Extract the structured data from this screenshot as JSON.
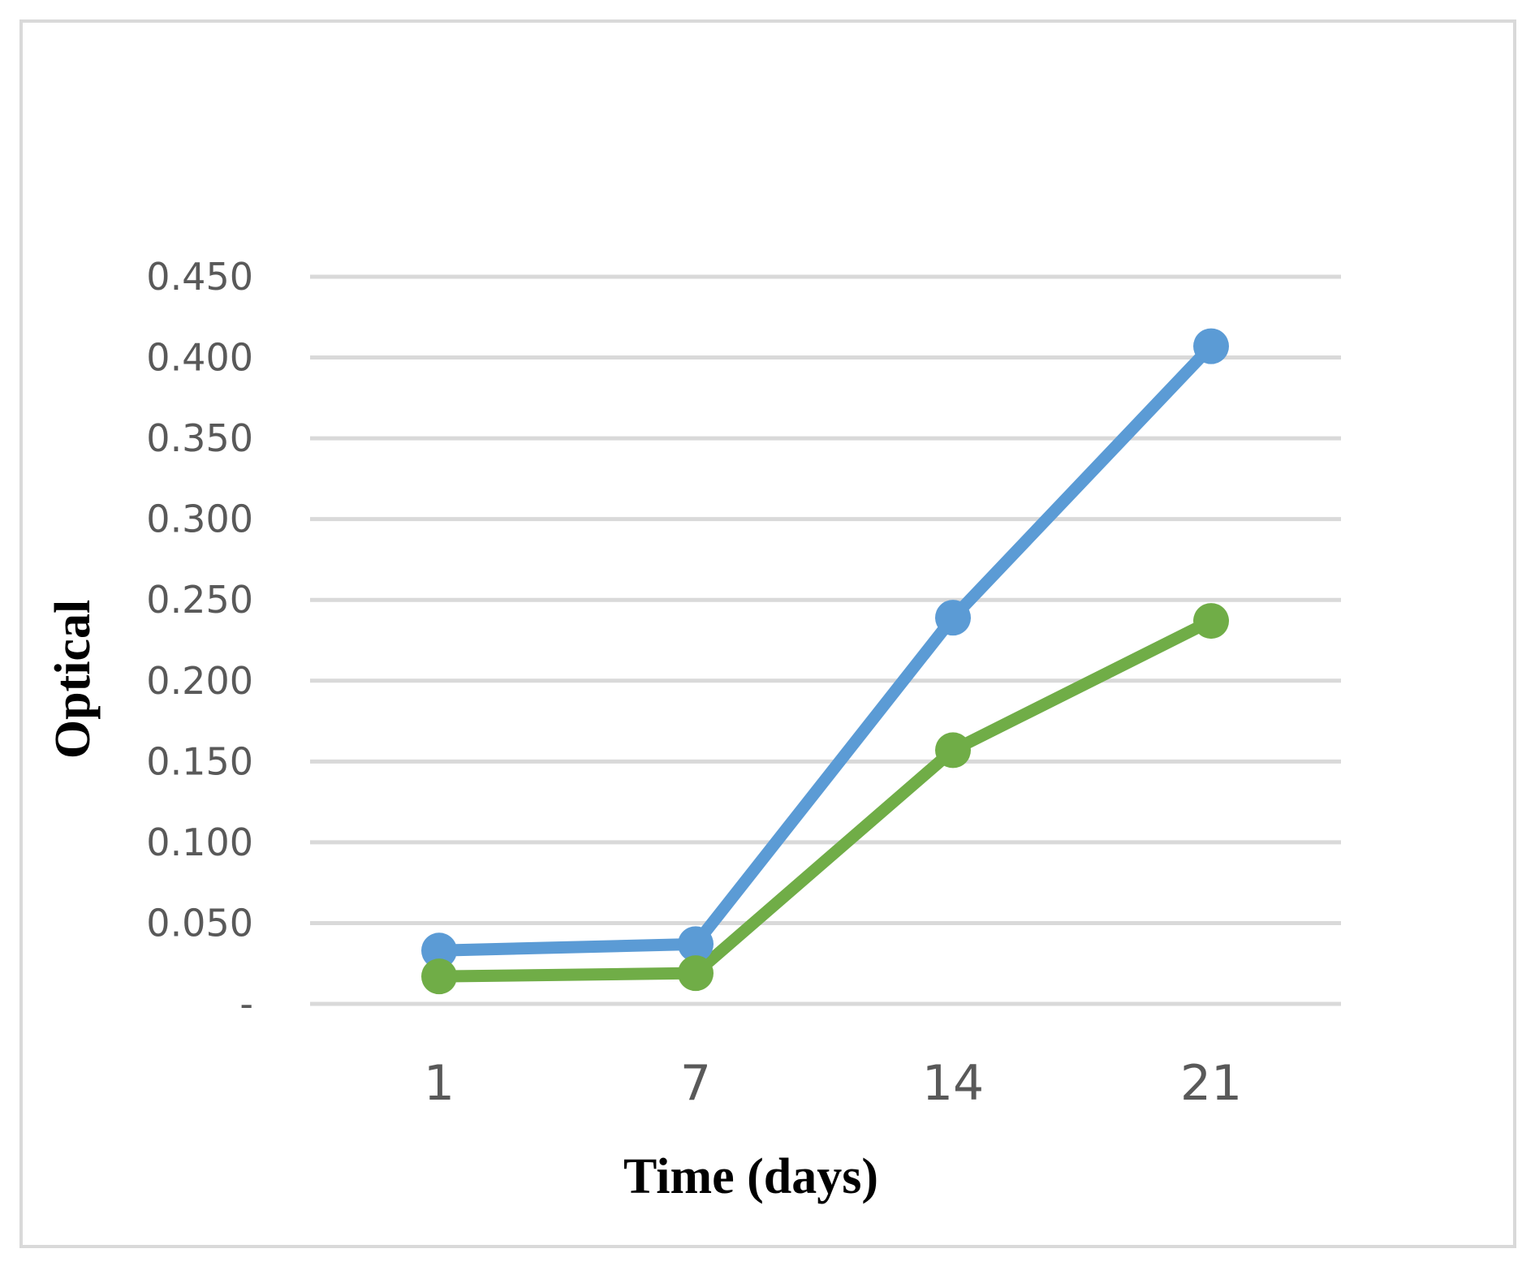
{
  "chart_data": {
    "type": "line",
    "title": "",
    "xlabel": "Time (days)",
    "ylabel": "Optical",
    "categories": [
      "1",
      "7",
      "14",
      "21"
    ],
    "ylim": [
      0,
      0.45
    ],
    "y_ticks": [
      0,
      0.05,
      0.1,
      0.15,
      0.2,
      0.25,
      0.3,
      0.35,
      0.4,
      0.45
    ],
    "y_tick_labels": [
      "-",
      "0.050",
      "0.100",
      "0.150",
      "0.200",
      "0.250",
      "0.300",
      "0.350",
      "0.400",
      "0.450"
    ],
    "grid": true,
    "legend": "none",
    "series": [
      {
        "values": [
          0.033,
          0.037,
          0.239,
          0.407
        ],
        "color": "#5B9BD5"
      },
      {
        "values": [
          0.017,
          0.019,
          0.157,
          0.237
        ],
        "color": "#70AD47"
      }
    ],
    "gridline_color": "#D9D9D9",
    "frame_color": "#D9D9D9"
  }
}
